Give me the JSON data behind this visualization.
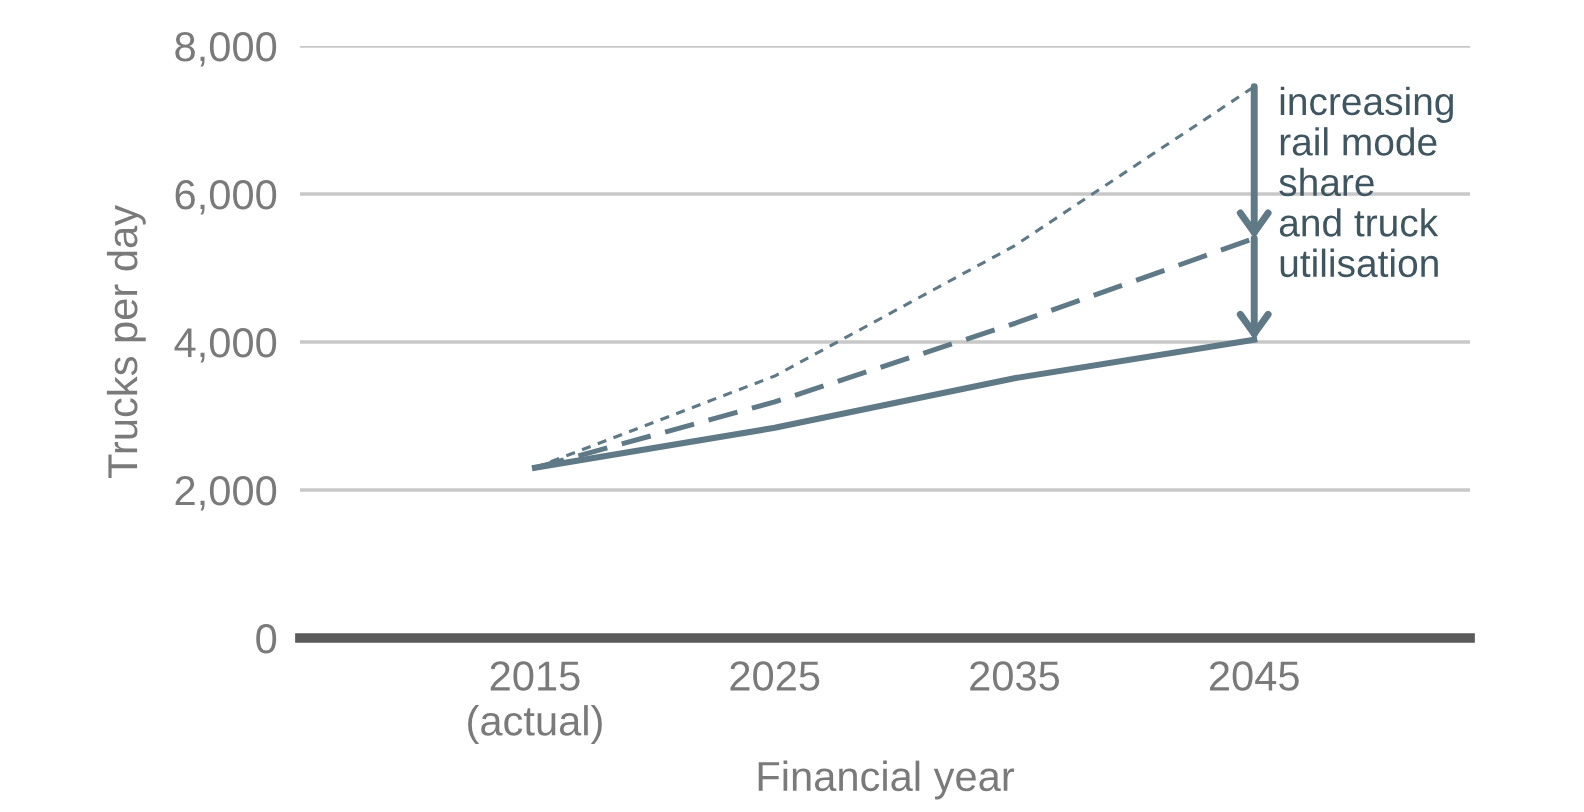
{
  "chart_data": {
    "type": "line",
    "xlabel": "Financial year",
    "ylabel": "Trucks per day",
    "categories": [
      "2015\n(actual)",
      "2025",
      "2035",
      "2045"
    ],
    "series": [
      {
        "color": "#5f7a86",
        "line_style": "dotted",
        "values": [
          2300,
          3540,
          5300,
          7450
        ]
      },
      {
        "color": "#5f7a86",
        "line_style": "dashed",
        "values": [
          2300,
          3190,
          4250,
          5400
        ]
      },
      {
        "color": "#5f7a86",
        "line_style": "solid",
        "values": [
          2300,
          2840,
          3510,
          4030
        ]
      }
    ],
    "ylim": [
      0,
      8000
    ],
    "yticks": [
      {
        "value": 0,
        "label": "0"
      },
      {
        "value": 2000,
        "label": "2,000"
      },
      {
        "value": 4000,
        "label": "4,000"
      },
      {
        "value": 6000,
        "label": "6,000"
      },
      {
        "value": 8000,
        "label": "8,000"
      }
    ],
    "grid": "y",
    "marker": "none",
    "annotations": [
      {
        "text": "increasing\nrail mode\nshare\nand truck\nutilisation",
        "x": "2045",
        "y": 7450
      }
    ]
  }
}
